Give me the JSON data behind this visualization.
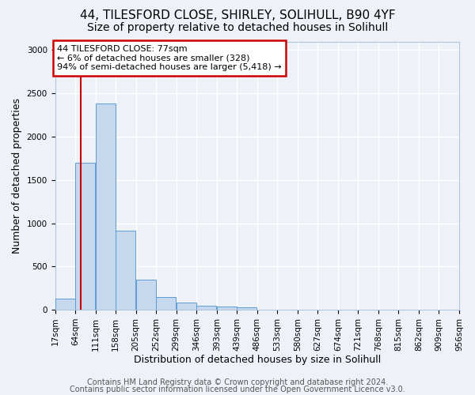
{
  "title1": "44, TILESFORD CLOSE, SHIRLEY, SOLIHULL, B90 4YF",
  "title2": "Size of property relative to detached houses in Solihull",
  "xlabel": "Distribution of detached houses by size in Solihull",
  "ylabel": "Number of detached properties",
  "bar_values": [
    125,
    1700,
    2380,
    910,
    350,
    145,
    80,
    50,
    35,
    25
  ],
  "bin_starts": [
    17,
    64,
    111,
    158,
    205,
    252,
    299,
    346,
    393,
    440,
    487,
    534,
    581,
    628,
    675,
    722,
    769,
    816,
    863,
    910
  ],
  "bin_width": 47,
  "x_tick_positions": [
    17,
    64,
    111,
    158,
    205,
    252,
    299,
    346,
    393,
    440,
    487,
    534,
    581,
    628,
    675,
    722,
    769,
    816,
    863,
    910,
    957
  ],
  "x_tick_labels": [
    "17sqm",
    "64sqm",
    "111sqm",
    "158sqm",
    "205sqm",
    "252sqm",
    "299sqm",
    "346sqm",
    "393sqm",
    "439sqm",
    "486sqm",
    "533sqm",
    "580sqm",
    "627sqm",
    "674sqm",
    "721sqm",
    "768sqm",
    "815sqm",
    "862sqm",
    "909sqm",
    "956sqm"
  ],
  "bar_color": "#c5d8ed",
  "bar_edge_color": "#5b9bd5",
  "vline_x": 77,
  "vline_color": "#cc0000",
  "annotation_line1": "44 TILESFORD CLOSE: 77sqm",
  "annotation_line2": "← 6% of detached houses are smaller (328)",
  "annotation_line3": "94% of semi-detached houses are larger (5,418) →",
  "box_edge_color": "#cc0000",
  "ylim": [
    0,
    3100
  ],
  "xlim": [
    17,
    957
  ],
  "yticks": [
    0,
    500,
    1000,
    1500,
    2000,
    2500,
    3000
  ],
  "footer1": "Contains HM Land Registry data © Crown copyright and database right 2024.",
  "footer2": "Contains public sector information licensed under the Open Government Licence v3.0.",
  "bg_color": "#eef2f8",
  "grid_color": "#ffffff",
  "title_fontsize": 11,
  "subtitle_fontsize": 10,
  "axis_label_fontsize": 9,
  "tick_fontsize": 7.5,
  "footer_fontsize": 7
}
